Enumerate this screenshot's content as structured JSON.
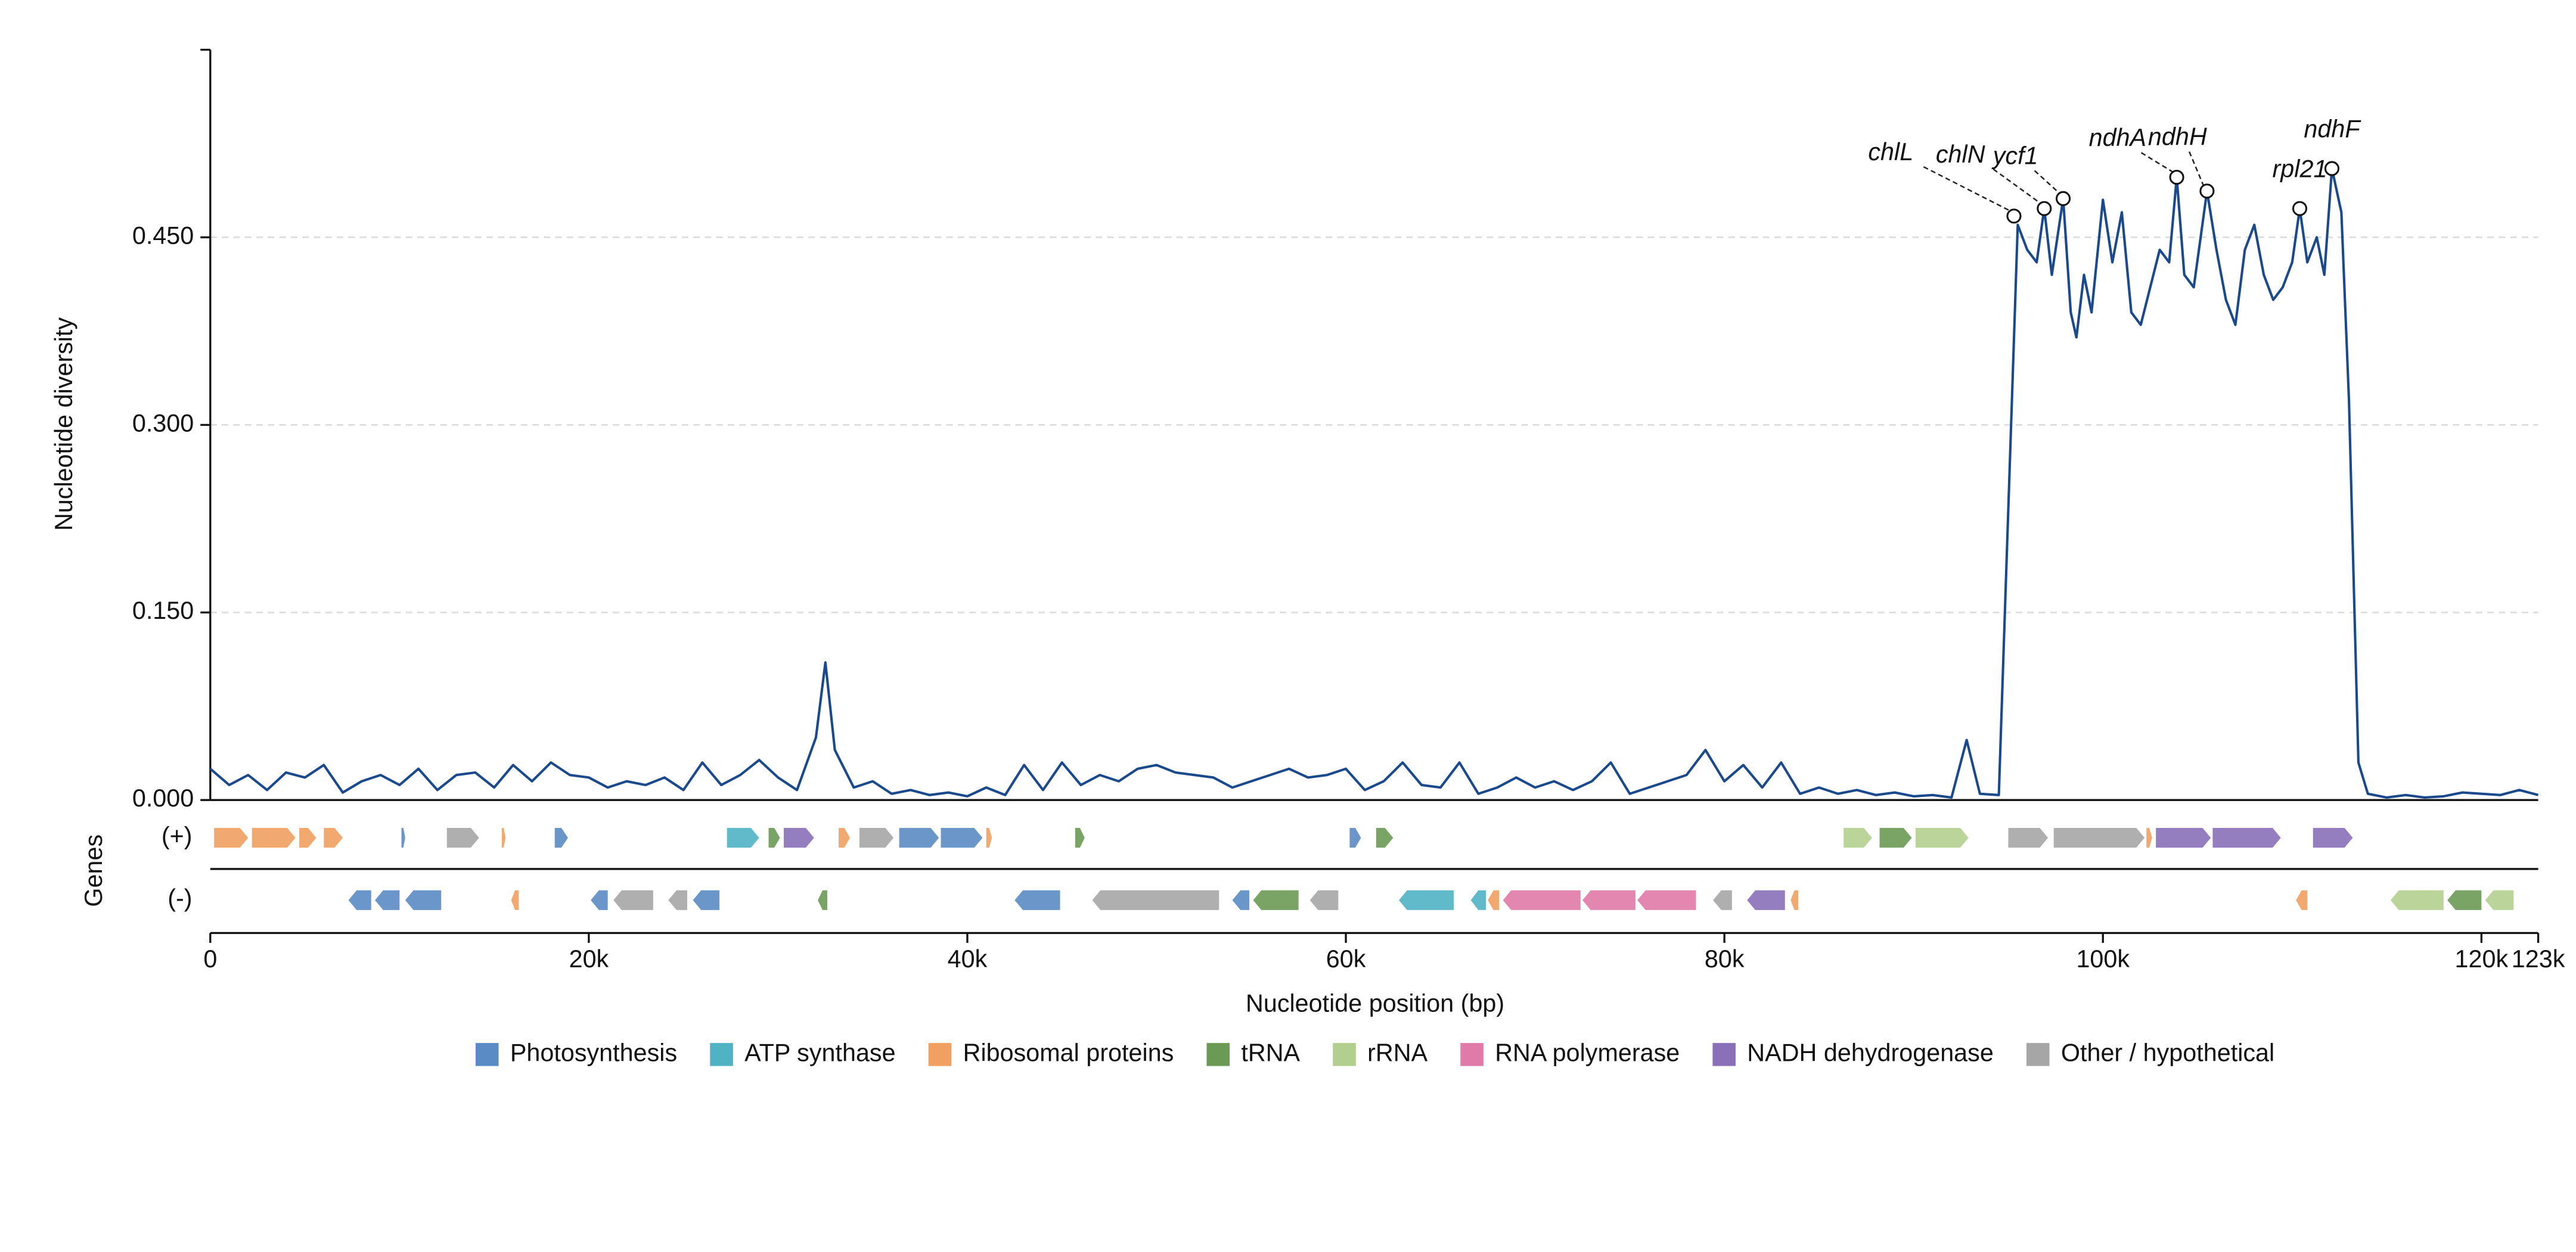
{
  "chart_data": {
    "type": "line",
    "ylabel": "Nucleotide diversity",
    "xlabel": "Nucleotide position (bp)",
    "color": "#1a4a8c",
    "xlim": [
      0,
      123000
    ],
    "ylim": [
      0,
      0.6
    ],
    "xticks": [
      0,
      {
        "value": 20000,
        "label": "20k"
      },
      {
        "value": 40000,
        "label": "40k"
      },
      {
        "value": 60000,
        "label": "60k"
      },
      {
        "value": 80000,
        "label": "80k"
      },
      {
        "value": 100000,
        "label": "100k"
      },
      {
        "value": 120000,
        "label": "120k"
      },
      {
        "value": 123000,
        "label": "123k"
      }
    ],
    "yticks": [
      {
        "value": 0,
        "label": "0.000"
      },
      {
        "value": 0.15,
        "label": "0.150"
      },
      {
        "value": 0.3,
        "label": "0.300"
      },
      {
        "value": 0.45,
        "label": "0.450"
      }
    ],
    "grid": true,
    "x": [
      0,
      1000,
      2000,
      3000,
      4000,
      5000,
      6000,
      7000,
      8000,
      9000,
      10000,
      11000,
      12000,
      13000,
      14000,
      15000,
      16000,
      17000,
      18000,
      19000,
      20000,
      21000,
      22000,
      23000,
      24000,
      25000,
      26000,
      27000,
      28000,
      29000,
      30000,
      31000,
      32000,
      32500,
      33000,
      34000,
      35000,
      36000,
      37000,
      38000,
      39000,
      40000,
      41000,
      42000,
      43000,
      44000,
      45000,
      46000,
      47000,
      48000,
      49000,
      50000,
      51000,
      52000,
      53000,
      54000,
      55000,
      56000,
      57000,
      58000,
      59000,
      60000,
      61000,
      62000,
      63000,
      64000,
      65000,
      66000,
      67000,
      68000,
      69000,
      70000,
      71000,
      72000,
      73000,
      74000,
      75000,
      76000,
      77000,
      78000,
      79000,
      80000,
      81000,
      82000,
      83000,
      84000,
      85000,
      86000,
      87000,
      88000,
      89000,
      90000,
      91000,
      92000,
      92800,
      93500,
      94500,
      95500,
      96000,
      96500,
      96900,
      97300,
      97900,
      98300,
      98600,
      99000,
      99400,
      100000,
      100500,
      101000,
      101500,
      102000,
      102500,
      103000,
      103500,
      103900,
      104300,
      104800,
      105500,
      106000,
      106500,
      107000,
      107500,
      108000,
      108500,
      109000,
      109500,
      110000,
      110400,
      110800,
      111300,
      111700,
      112100,
      112600,
      113000,
      113500,
      114000,
      115000,
      116000,
      117000,
      118000,
      119000,
      120000,
      121000,
      122000,
      123000
    ],
    "values": [
      0.025,
      0.012,
      0.02,
      0.008,
      0.022,
      0.018,
      0.028,
      0.006,
      0.015,
      0.02,
      0.012,
      0.025,
      0.008,
      0.02,
      0.022,
      0.01,
      0.028,
      0.015,
      0.03,
      0.02,
      0.018,
      0.01,
      0.015,
      0.012,
      0.018,
      0.008,
      0.03,
      0.012,
      0.02,
      0.032,
      0.018,
      0.008,
      0.05,
      0.11,
      0.04,
      0.01,
      0.015,
      0.005,
      0.008,
      0.004,
      0.006,
      0.003,
      0.01,
      0.004,
      0.028,
      0.008,
      0.03,
      0.012,
      0.02,
      0.015,
      0.025,
      0.028,
      0.022,
      0.02,
      0.018,
      0.01,
      0.015,
      0.02,
      0.025,
      0.018,
      0.02,
      0.025,
      0.008,
      0.015,
      0.03,
      0.012,
      0.01,
      0.03,
      0.005,
      0.01,
      0.018,
      0.01,
      0.015,
      0.008,
      0.015,
      0.03,
      0.005,
      0.01,
      0.015,
      0.02,
      0.04,
      0.015,
      0.028,
      0.01,
      0.03,
      0.005,
      0.01,
      0.005,
      0.008,
      0.004,
      0.006,
      0.003,
      0.004,
      0.002,
      0.048,
      0.005,
      0.004,
      0.46,
      0.44,
      0.43,
      0.473,
      0.42,
      0.481,
      0.39,
      0.37,
      0.42,
      0.39,
      0.48,
      0.43,
      0.47,
      0.39,
      0.38,
      0.41,
      0.44,
      0.43,
      0.498,
      0.42,
      0.41,
      0.487,
      0.44,
      0.4,
      0.38,
      0.44,
      0.46,
      0.42,
      0.4,
      0.41,
      0.43,
      0.473,
      0.43,
      0.45,
      0.42,
      0.505,
      0.47,
      0.32,
      0.03,
      0.005,
      0.002,
      0.004,
      0.002,
      0.003,
      0.006,
      0.005,
      0.004,
      0.008,
      0.004
    ],
    "annotations": [
      {
        "label": "chlL",
        "x": 95300,
        "y": 0.467
      },
      {
        "label": "chlN",
        "x": 96900,
        "y": 0.473
      },
      {
        "label": "ycf1",
        "x": 97900,
        "y": 0.481
      },
      {
        "label": "ndhA",
        "x": 103900,
        "y": 0.498
      },
      {
        "label": "ndhH",
        "x": 105500,
        "y": 0.487
      },
      {
        "label": "rpl21",
        "x": 110400,
        "y": 0.473
      },
      {
        "label": "ndhF",
        "x": 112100,
        "y": 0.505
      }
    ],
    "gene_track": {
      "title": "Genes",
      "categories": [
        {
          "name": "Photosynthesis",
          "color": "#5b8bc4"
        },
        {
          "name": "ATP synthase",
          "color": "#4fb3c3"
        },
        {
          "name": "Ribosomal proteins",
          "color": "#f0a060"
        },
        {
          "name": "tRNA",
          "color": "#6a9a55"
        },
        {
          "name": "rRNA",
          "color": "#b2cf8f"
        },
        {
          "name": "RNA polymerase",
          "color": "#e07aa8"
        },
        {
          "name": "NADH dehydrogenase",
          "color": "#8a70b8"
        },
        {
          "name": "Other / hypothetical",
          "color": "#a6a6a6"
        }
      ],
      "tracks": [
        {
          "label": "(+)",
          "genes": [
            {
              "start": 200,
              "end": 2000,
              "category": "Ribosomal proteins"
            },
            {
              "start": 2200,
              "end": 4500,
              "category": "Ribosomal proteins"
            },
            {
              "start": 4700,
              "end": 5600,
              "category": "Ribosomal proteins"
            },
            {
              "start": 6000,
              "end": 7000,
              "category": "Ribosomal proteins"
            },
            {
              "start": 10100,
              "end": 10300,
              "category": "Photosynthesis"
            },
            {
              "start": 12500,
              "end": 14200,
              "category": "Other / hypothetical"
            },
            {
              "start": 15400,
              "end": 15600,
              "category": "Ribosomal proteins"
            },
            {
              "start": 18200,
              "end": 18900,
              "category": "Photosynthesis"
            },
            {
              "start": 27300,
              "end": 29000,
              "category": "ATP synthase"
            },
            {
              "start": 29500,
              "end": 30100,
              "category": "tRNA"
            },
            {
              "start": 30300,
              "end": 31900,
              "category": "NADH dehydrogenase"
            },
            {
              "start": 33200,
              "end": 33800,
              "category": "Ribosomal proteins"
            },
            {
              "start": 34300,
              "end": 36100,
              "category": "Other / hypothetical"
            },
            {
              "start": 36400,
              "end": 38500,
              "category": "Photosynthesis"
            },
            {
              "start": 38600,
              "end": 40800,
              "category": "Photosynthesis"
            },
            {
              "start": 41000,
              "end": 41300,
              "category": "Ribosomal proteins"
            },
            {
              "start": 45700,
              "end": 46200,
              "category": "tRNA"
            },
            {
              "start": 60200,
              "end": 60800,
              "category": "Photosynthesis"
            },
            {
              "start": 61600,
              "end": 62500,
              "category": "tRNA"
            },
            {
              "start": 86300,
              "end": 87800,
              "category": "rRNA"
            },
            {
              "start": 88200,
              "end": 89900,
              "category": "tRNA"
            },
            {
              "start": 90100,
              "end": 92900,
              "category": "rRNA"
            },
            {
              "start": 95000,
              "end": 97100,
              "category": "Other / hypothetical"
            },
            {
              "start": 97400,
              "end": 102200,
              "category": "Other / hypothetical"
            },
            {
              "start": 102300,
              "end": 102600,
              "category": "Ribosomal proteins"
            },
            {
              "start": 102800,
              "end": 105700,
              "category": "NADH dehydrogenase"
            },
            {
              "start": 105800,
              "end": 109400,
              "category": "NADH dehydrogenase"
            },
            {
              "start": 111100,
              "end": 113200,
              "category": "NADH dehydrogenase"
            }
          ]
        },
        {
          "label": "(-)",
          "genes": [
            {
              "start": 7300,
              "end": 8500,
              "category": "Photosynthesis"
            },
            {
              "start": 8700,
              "end": 10000,
              "category": "Photosynthesis"
            },
            {
              "start": 10300,
              "end": 12200,
              "category": "Photosynthesis"
            },
            {
              "start": 15900,
              "end": 16300,
              "category": "Ribosomal proteins"
            },
            {
              "start": 20100,
              "end": 21000,
              "category": "Photosynthesis"
            },
            {
              "start": 21300,
              "end": 23400,
              "category": "Other / hypothetical"
            },
            {
              "start": 24200,
              "end": 25200,
              "category": "Other / hypothetical"
            },
            {
              "start": 25500,
              "end": 26900,
              "category": "Photosynthesis"
            },
            {
              "start": 32100,
              "end": 32600,
              "category": "tRNA"
            },
            {
              "start": 42500,
              "end": 44900,
              "category": "Photosynthesis"
            },
            {
              "start": 46600,
              "end": 53300,
              "category": "Other / hypothetical"
            },
            {
              "start": 54000,
              "end": 54900,
              "category": "Photosynthesis"
            },
            {
              "start": 55100,
              "end": 57500,
              "category": "tRNA"
            },
            {
              "start": 58100,
              "end": 59600,
              "category": "Other / hypothetical"
            },
            {
              "start": 62800,
              "end": 65700,
              "category": "ATP synthase"
            },
            {
              "start": 66600,
              "end": 67400,
              "category": "ATP synthase"
            },
            {
              "start": 67500,
              "end": 68100,
              "category": "Ribosomal proteins"
            },
            {
              "start": 68300,
              "end": 72400,
              "category": "RNA polymerase"
            },
            {
              "start": 72500,
              "end": 75300,
              "category": "RNA polymerase"
            },
            {
              "start": 75400,
              "end": 78500,
              "category": "RNA polymerase"
            },
            {
              "start": 79400,
              "end": 80400,
              "category": "Other / hypothetical"
            },
            {
              "start": 81200,
              "end": 83200,
              "category": "NADH dehydrogenase"
            },
            {
              "start": 83500,
              "end": 83900,
              "category": "Ribosomal proteins"
            },
            {
              "start": 110200,
              "end": 110800,
              "category": "Ribosomal proteins"
            },
            {
              "start": 115200,
              "end": 118000,
              "category": "rRNA"
            },
            {
              "start": 118200,
              "end": 120000,
              "category": "tRNA"
            },
            {
              "start": 120200,
              "end": 121700,
              "category": "rRNA"
            }
          ]
        }
      ]
    }
  }
}
